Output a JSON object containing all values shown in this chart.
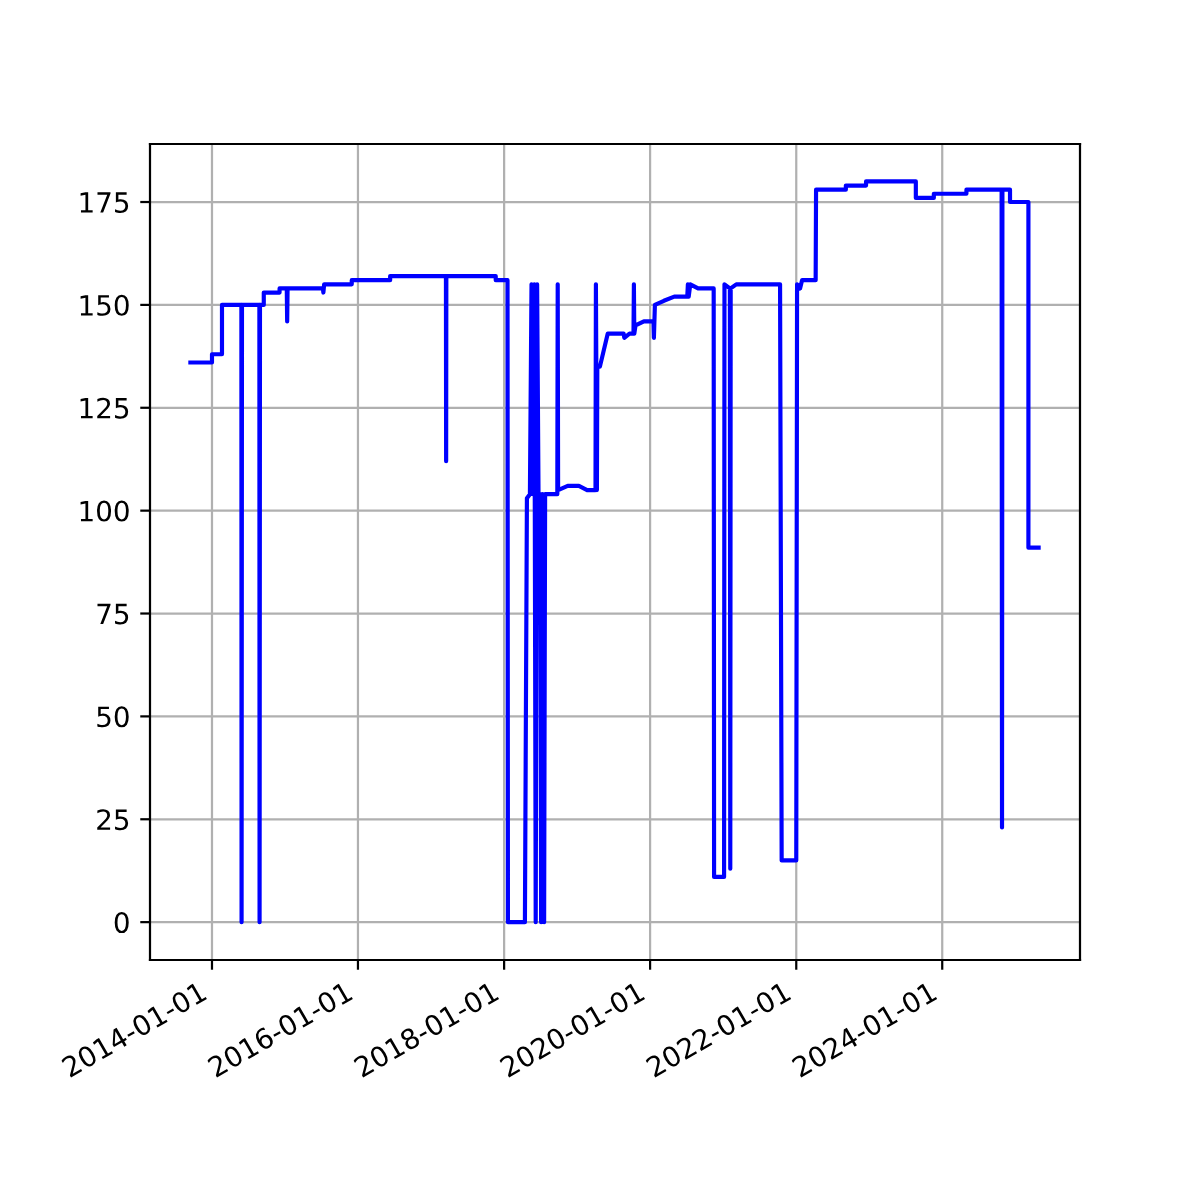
{
  "chart_data": {
    "type": "line",
    "series": [
      {
        "color": "#0000ff",
        "x": [
          "2013-09-15",
          "2014-01-01",
          "2014-01-01",
          "2014-02-20",
          "2014-02-20",
          "2014-05-28",
          "2014-05-29",
          "2014-05-31",
          "2014-08-26",
          "2014-08-27",
          "2014-08-29",
          "2014-09-17",
          "2014-09-17",
          "2014-12-05",
          "2014-12-05",
          "2015-01-10",
          "2015-01-12",
          "2015-01-14",
          "2015-07-10",
          "2015-07-12",
          "2015-07-14",
          "2015-07-16",
          "2015-12-01",
          "2015-12-01",
          "2016-06-10",
          "2016-06-10",
          "2017-03-16",
          "2017-03-17",
          "2017-03-18",
          "2017-11-20",
          "2017-11-20",
          "2018-01-18",
          "2018-01-20",
          "2018-04-15",
          "2018-04-25",
          "2018-05-10",
          "2018-05-18",
          "2018-05-25",
          "2018-06-01",
          "2018-06-08",
          "2018-06-15",
          "2018-06-22",
          "2018-07-01",
          "2018-07-05",
          "2018-07-12",
          "2018-07-20",
          "2018-07-25",
          "2018-09-24",
          "2018-09-26",
          "2018-09-28",
          "2018-11-15",
          "2019-01-10",
          "2019-02-20",
          "2019-04-03",
          "2019-04-05",
          "2019-04-10",
          "2019-04-12",
          "2019-04-25",
          "2019-06-03",
          "2019-08-22",
          "2019-08-25",
          "2019-09-20",
          "2019-10-10",
          "2019-10-12",
          "2019-10-14",
          "2019-10-20",
          "2019-12-01",
          "2020-01-18",
          "2020-01-20",
          "2020-01-25",
          "2020-03-10",
          "2020-05-01",
          "2020-07-05",
          "2020-07-08",
          "2020-07-12",
          "2020-07-20",
          "2020-08-28",
          "2020-11-14",
          "2020-11-16",
          "2021-01-05",
          "2021-01-07",
          "2021-02-03",
          "2021-02-05",
          "2021-02-07",
          "2021-03-07",
          "2021-10-12",
          "2021-10-20",
          "2022-01-01",
          "2022-01-05",
          "2022-01-20",
          "2022-01-30",
          "2022-04-08",
          "2022-04-10",
          "2022-09-06",
          "2022-09-06",
          "2022-12-16",
          "2022-12-16",
          "2023-08-22",
          "2023-08-22",
          "2023-11-20",
          "2023-11-20",
          "2024-05-01",
          "2024-05-01",
          "2024-10-24",
          "2024-10-26",
          "2024-10-28",
          "2024-12-05",
          "2024-12-05",
          "2025-03-07",
          "2025-03-07",
          "2025-04-27"
        ],
        "values": [
          136,
          136,
          138,
          138,
          150,
          150,
          0,
          150,
          150,
          0,
          150,
          150,
          153,
          153,
          154,
          154,
          146,
          154,
          154,
          153,
          154,
          155,
          155,
          156,
          156,
          157,
          157,
          112,
          157,
          157,
          156,
          156,
          0,
          0,
          103,
          104,
          155,
          104,
          155,
          0,
          155,
          104,
          104,
          0,
          104,
          0,
          104,
          104,
          155,
          105,
          106,
          106,
          105,
          105,
          155,
          105,
          135,
          135,
          143,
          143,
          142,
          143,
          143,
          155,
          143,
          145,
          146,
          146,
          142,
          150,
          151,
          152,
          152,
          155,
          152,
          155,
          154,
          154,
          11,
          11,
          155,
          154,
          13,
          154,
          155,
          155,
          15,
          15,
          155,
          154,
          156,
          156,
          178,
          178,
          179,
          179,
          180,
          180,
          176,
          176,
          177,
          177,
          178,
          178,
          23,
          178,
          178,
          175,
          175,
          91,
          91
        ]
      }
    ],
    "xlim": [
      "2013-02-25",
      "2025-11-20"
    ],
    "xticks": [
      "2014-01-01",
      "2016-01-01",
      "2018-01-01",
      "2020-01-01",
      "2022-01-01",
      "2024-01-01"
    ],
    "ylim": [
      -9.2,
      189.1
    ],
    "yticks": [
      0,
      25,
      50,
      75,
      100,
      125,
      150,
      175
    ],
    "grid": true
  }
}
